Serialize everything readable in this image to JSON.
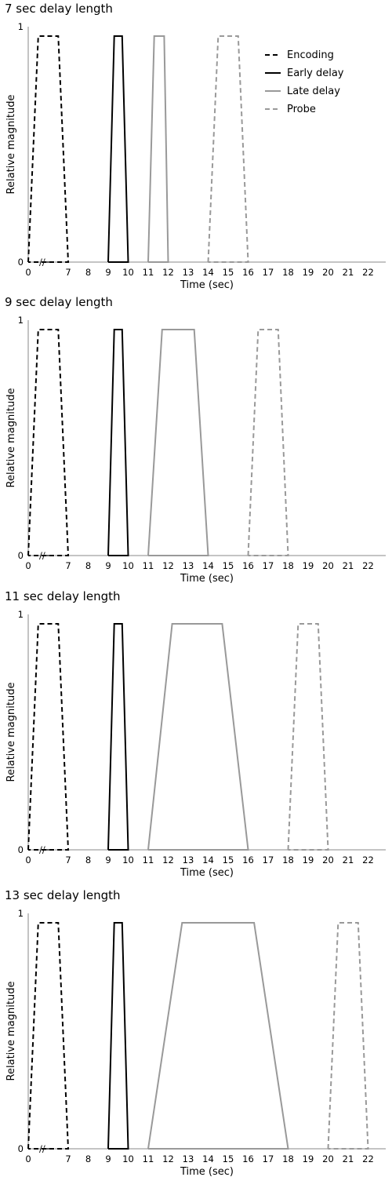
{
  "chart_data": [
    {
      "type": "line",
      "title": "7 sec delay length",
      "xlabel": "Time (sec)",
      "ylabel": "Relative magnitude",
      "xlim": [
        0,
        23
      ],
      "ylim": [
        0,
        1
      ],
      "x_ticks": [
        "0",
        "7",
        "8",
        "9",
        "10",
        "11",
        "12",
        "13",
        "14",
        "15",
        "16",
        "17",
        "18",
        "19",
        "20",
        "21",
        "22"
      ],
      "y_ticks": [
        "0",
        "1"
      ],
      "axis_break": "//",
      "grid": false,
      "legend": {
        "placement": "top-right",
        "entries": [
          "Encoding",
          "Early delay",
          "Late delay",
          "Probe"
        ]
      },
      "series": [
        {
          "name": "Encoding",
          "color": "#000000",
          "style": "dashed",
          "x": [
            0,
            0.5,
            1.5,
            2.0,
            0
          ],
          "y": [
            0,
            0.96,
            0.96,
            0,
            0
          ]
        },
        {
          "name": "Early delay",
          "color": "#000000",
          "style": "solid",
          "x": [
            9,
            9.3,
            9.7,
            10,
            9
          ],
          "y": [
            0,
            0.96,
            0.96,
            0,
            0
          ]
        },
        {
          "name": "Late delay",
          "color": "#999999",
          "style": "solid",
          "x": [
            11,
            11.3,
            11.8,
            12,
            11
          ],
          "y": [
            0,
            0.96,
            0.96,
            0,
            0
          ]
        },
        {
          "name": "Probe",
          "color": "#999999",
          "style": "dashed",
          "x": [
            14,
            14.5,
            15.5,
            16,
            14
          ],
          "y": [
            0,
            0.96,
            0.96,
            0,
            0
          ]
        }
      ]
    },
    {
      "type": "line",
      "title": "9 sec delay length",
      "xlabel": "Time (sec)",
      "ylabel": "Relative magnitude",
      "xlim": [
        0,
        23
      ],
      "ylim": [
        0,
        1
      ],
      "x_ticks": [
        "0",
        "7",
        "8",
        "9",
        "10",
        "11",
        "12",
        "13",
        "14",
        "15",
        "16",
        "17",
        "18",
        "19",
        "20",
        "21",
        "22"
      ],
      "y_ticks": [
        "0",
        "1"
      ],
      "axis_break": "//",
      "grid": false,
      "series": [
        {
          "name": "Encoding",
          "color": "#000000",
          "style": "dashed",
          "x": [
            0,
            0.5,
            1.5,
            2.0,
            0
          ],
          "y": [
            0,
            0.96,
            0.96,
            0,
            0
          ]
        },
        {
          "name": "Early delay",
          "color": "#000000",
          "style": "solid",
          "x": [
            9,
            9.3,
            9.7,
            10,
            9
          ],
          "y": [
            0,
            0.96,
            0.96,
            0,
            0
          ]
        },
        {
          "name": "Late delay",
          "color": "#999999",
          "style": "solid",
          "x": [
            11,
            11.7,
            13.3,
            14,
            11
          ],
          "y": [
            0,
            0.96,
            0.96,
            0,
            0
          ]
        },
        {
          "name": "Probe",
          "color": "#999999",
          "style": "dashed",
          "x": [
            16,
            16.5,
            17.5,
            18,
            16
          ],
          "y": [
            0,
            0.96,
            0.96,
            0,
            0
          ]
        }
      ]
    },
    {
      "type": "line",
      "title": "11 sec delay length",
      "xlabel": "Time (sec)",
      "ylabel": "Relative magnitude",
      "xlim": [
        0,
        23
      ],
      "ylim": [
        0,
        1
      ],
      "x_ticks": [
        "0",
        "7",
        "8",
        "9",
        "10",
        "11",
        "12",
        "13",
        "14",
        "15",
        "16",
        "17",
        "18",
        "19",
        "20",
        "21",
        "22"
      ],
      "y_ticks": [
        "0",
        "1"
      ],
      "axis_break": "//",
      "grid": false,
      "series": [
        {
          "name": "Encoding",
          "color": "#000000",
          "style": "dashed",
          "x": [
            0,
            0.5,
            1.5,
            2.0,
            0
          ],
          "y": [
            0,
            0.96,
            0.96,
            0,
            0
          ]
        },
        {
          "name": "Early delay",
          "color": "#000000",
          "style": "solid",
          "x": [
            9,
            9.3,
            9.7,
            10,
            9
          ],
          "y": [
            0,
            0.96,
            0.96,
            0,
            0
          ]
        },
        {
          "name": "Late delay",
          "color": "#999999",
          "style": "solid",
          "x": [
            11,
            12.2,
            14.7,
            16,
            11
          ],
          "y": [
            0,
            0.96,
            0.96,
            0,
            0
          ]
        },
        {
          "name": "Probe",
          "color": "#999999",
          "style": "dashed",
          "x": [
            18,
            18.5,
            19.5,
            20,
            18
          ],
          "y": [
            0,
            0.96,
            0.96,
            0,
            0
          ]
        }
      ]
    },
    {
      "type": "line",
      "title": "13 sec delay length",
      "xlabel": "Time (sec)",
      "ylabel": "Relative magnitude",
      "xlim": [
        0,
        23
      ],
      "ylim": [
        0,
        1
      ],
      "x_ticks": [
        "0",
        "7",
        "8",
        "9",
        "10",
        "11",
        "12",
        "13",
        "14",
        "15",
        "16",
        "17",
        "18",
        "19",
        "20",
        "21",
        "22"
      ],
      "y_ticks": [
        "0",
        "1"
      ],
      "axis_break": "//",
      "grid": false,
      "series": [
        {
          "name": "Encoding",
          "color": "#000000",
          "style": "dashed",
          "x": [
            0,
            0.5,
            1.5,
            2.0,
            0
          ],
          "y": [
            0,
            0.96,
            0.96,
            0,
            0
          ]
        },
        {
          "name": "Early delay",
          "color": "#000000",
          "style": "solid",
          "x": [
            9,
            9.3,
            9.7,
            10,
            9
          ],
          "y": [
            0,
            0.96,
            0.96,
            0,
            0
          ]
        },
        {
          "name": "Late delay",
          "color": "#999999",
          "style": "solid",
          "x": [
            11,
            12.7,
            16.3,
            18,
            11
          ],
          "y": [
            0,
            0.96,
            0.96,
            0,
            0
          ]
        },
        {
          "name": "Probe",
          "color": "#999999",
          "style": "dashed",
          "x": [
            20,
            20.5,
            21.5,
            22,
            20
          ],
          "y": [
            0,
            0.96,
            0.96,
            0,
            0
          ]
        }
      ]
    }
  ]
}
